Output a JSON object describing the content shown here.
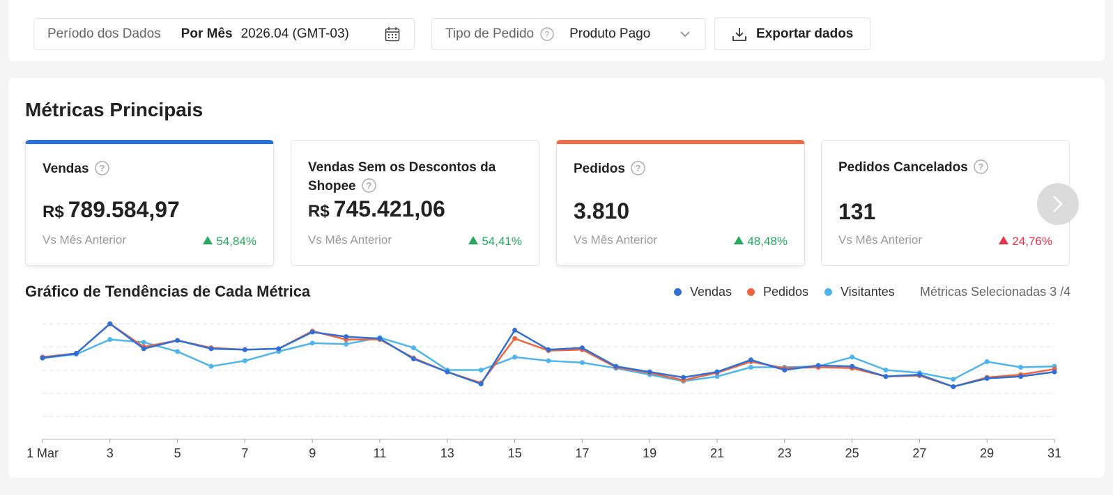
{
  "filters": {
    "period_label": "Período dos Dados",
    "period_mode": "Por Mês",
    "period_value": "2026.04 (GMT-03)",
    "order_type_label": "Tipo de Pedido",
    "order_type_value": "Produto Pago",
    "export_label": "Exportar dados"
  },
  "main": {
    "title": "Métricas Principais",
    "compare_label": "Vs Mês Anterior",
    "cards": [
      {
        "title": "Vendas",
        "currency": "R$",
        "value": "789.584,97",
        "delta": "54,84%",
        "direction": "up",
        "color": "#26aa5e",
        "selected": true
      },
      {
        "title_line1": "Vendas Sem os Descontos da",
        "title_line2": "Shopee",
        "currency": "R$",
        "value": "745.421,06",
        "delta": "54,41%",
        "direction": "up",
        "color": "#26aa5e",
        "selected": false
      },
      {
        "title": "Pedidos",
        "value": "3.810",
        "delta": "48,48%",
        "direction": "up",
        "color": "#26aa5e",
        "selected": true
      },
      {
        "title": "Pedidos Cancelados",
        "value": "131",
        "delta": "24,76%",
        "direction": "up",
        "color": "#e8334a",
        "selected": false
      }
    ]
  },
  "trend": {
    "title": "Gráfico de Tendências de Cada Métrica",
    "selected_metrics": "Métricas Selecionadas 3 /4",
    "legend": [
      {
        "name": "Vendas",
        "color": "#2f6fd6"
      },
      {
        "name": "Pedidos",
        "color": "#f0643c"
      },
      {
        "name": "Visitantes",
        "color": "#4eb5ec"
      }
    ]
  },
  "chart_data": {
    "type": "line",
    "x": [
      1,
      2,
      3,
      4,
      5,
      6,
      7,
      8,
      9,
      10,
      11,
      12,
      13,
      14,
      15,
      16,
      17,
      18,
      19,
      20,
      21,
      22,
      23,
      24,
      25,
      26,
      27,
      28,
      29,
      30,
      31
    ],
    "tick_labels": [
      "1 Mar",
      "3",
      "5",
      "7",
      "9",
      "11",
      "13",
      "15",
      "17",
      "19",
      "21",
      "23",
      "25",
      "27",
      "29",
      "31"
    ],
    "ylim": [
      0,
      100
    ],
    "grid": true,
    "series": [
      {
        "name": "Vendas",
        "color": "#2f6fd6",
        "values": [
          63,
          68,
          100,
          73,
          82,
          73,
          72,
          73,
          91,
          86,
          84,
          62,
          48,
          35,
          93,
          72,
          74,
          54,
          48,
          42,
          48,
          61,
          50,
          55,
          54,
          43,
          45,
          32,
          41,
          43,
          48
        ]
      },
      {
        "name": "Pedidos",
        "color": "#f0643c",
        "values": [
          64,
          68,
          100,
          75,
          82,
          74,
          72,
          73,
          92,
          83,
          83,
          63,
          48,
          36,
          84,
          71,
          72,
          53,
          47,
          39,
          47,
          59,
          52,
          53,
          52,
          43,
          44,
          32,
          42,
          45,
          51
        ]
      },
      {
        "name": "Visitantes",
        "color": "#4eb5ec",
        "values": [
          63,
          67,
          83,
          80,
          70,
          54,
          60,
          70,
          79,
          78,
          85,
          74,
          50,
          50,
          64,
          60,
          58,
          52,
          45,
          38,
          43,
          53,
          53,
          54,
          64,
          50,
          47,
          40,
          59,
          53,
          54
        ]
      }
    ]
  }
}
